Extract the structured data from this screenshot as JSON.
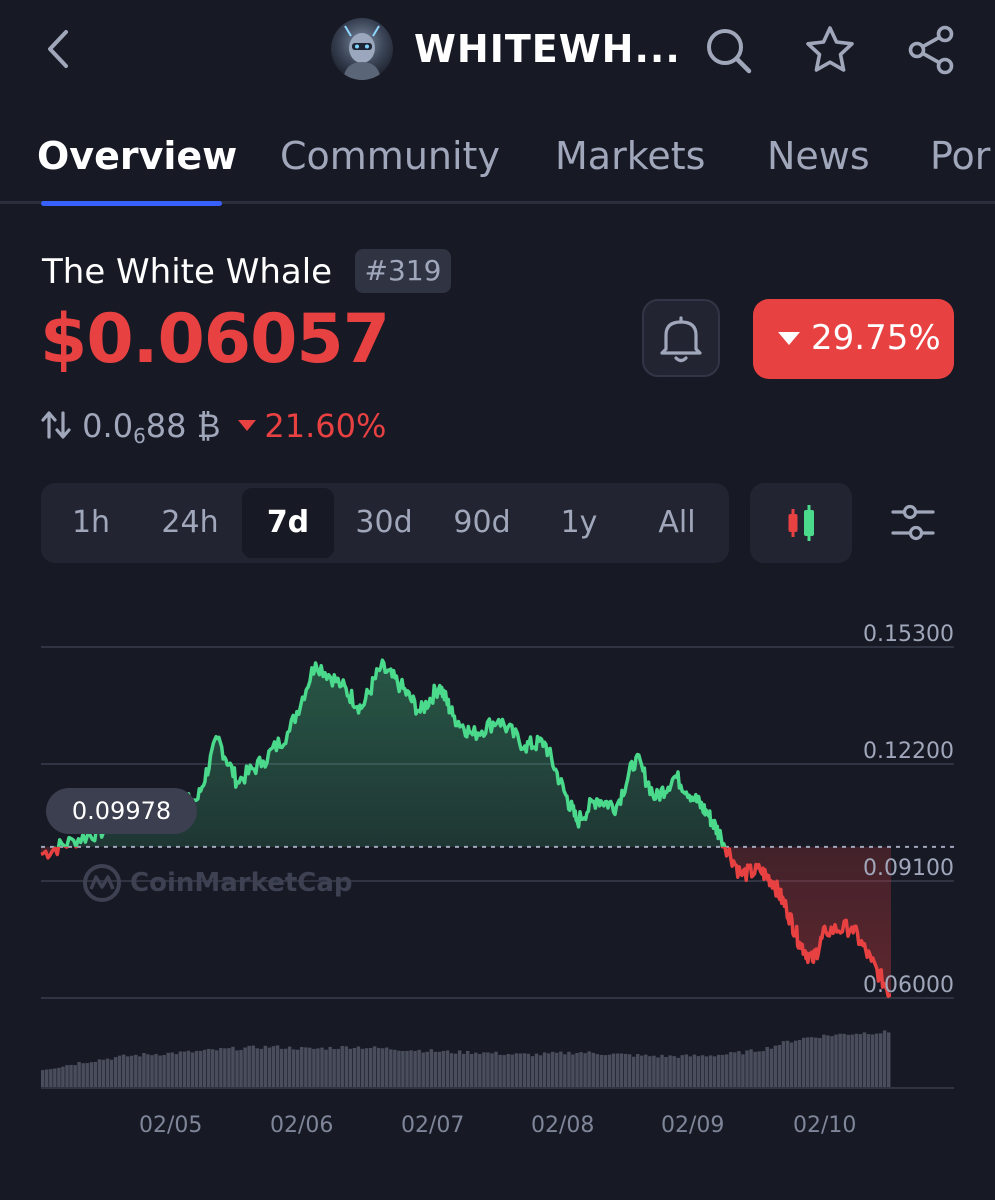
{
  "header": {
    "coin_short_name": "WHITEWH...",
    "icons": [
      "back-chevron-icon",
      "search-icon",
      "star-icon",
      "share-icon"
    ]
  },
  "tabs": [
    {
      "label": "Overview",
      "active": true
    },
    {
      "label": "Community",
      "active": false
    },
    {
      "label": "Markets",
      "active": false
    },
    {
      "label": "News",
      "active": false
    },
    {
      "label": "Por",
      "active": false
    }
  ],
  "coin": {
    "name": "The White Whale",
    "rank": "#319",
    "price": "$0.06057",
    "change_24h": "29.75%",
    "btc_price_main": "0.0",
    "btc_price_sub": "6",
    "btc_price_tail": "88 ₿",
    "btc_change": "21.60%"
  },
  "colors": {
    "background": "#171924",
    "up": "#4bd98c",
    "down": "#e84142",
    "accent": "#3861fb"
  },
  "range_selector": {
    "options": [
      "1h",
      "24h",
      "7d",
      "30d",
      "90d",
      "1y",
      "All"
    ],
    "selected": "7d"
  },
  "chart_badge": "0.09978",
  "watermark": "CoinMarketCap",
  "chart_data": {
    "type": "line",
    "reference_value": 0.09978,
    "y_ticks": [
      "0.15300",
      "0.12200",
      "0.09100",
      "0.06000"
    ],
    "x_ticks": [
      "02/05",
      "02/06",
      "02/07",
      "02/08",
      "02/09",
      "02/10"
    ],
    "ylim": [
      0.06,
      0.153
    ],
    "x": [
      0,
      0.25,
      0.5,
      0.8,
      1.0,
      1.2,
      1.35,
      1.5,
      1.7,
      1.9,
      2.1,
      2.3,
      2.45,
      2.6,
      2.75,
      2.9,
      3.05,
      3.15,
      3.3,
      3.5,
      3.7,
      3.85,
      4.0,
      4.1,
      4.25,
      4.4,
      4.55,
      4.7,
      4.85,
      5.0,
      5.1,
      5.2,
      5.35,
      5.5,
      5.6,
      5.7,
      5.8,
      5.9,
      6.0,
      6.2,
      6.35,
      6.5
    ],
    "y": [
      0.0978,
      0.1015,
      0.1045,
      0.1085,
      0.1105,
      0.1125,
      0.1285,
      0.117,
      0.1225,
      0.1305,
      0.1485,
      0.1425,
      0.1365,
      0.1475,
      0.1425,
      0.1355,
      0.1425,
      0.1345,
      0.1295,
      0.1335,
      0.1265,
      0.1275,
      0.1145,
      0.1065,
      0.1125,
      0.1105,
      0.1235,
      0.1125,
      0.1185,
      0.1125,
      0.1085,
      0.1025,
      0.0925,
      0.0935,
      0.0905,
      0.0835,
      0.0745,
      0.0695,
      0.0775,
      0.0785,
      0.0695,
      0.0605
    ],
    "volume": [
      0.32,
      0.38,
      0.45,
      0.5,
      0.55,
      0.58,
      0.6,
      0.62,
      0.65,
      0.68,
      0.7,
      0.72,
      0.7,
      0.68,
      0.7,
      0.72,
      0.7,
      0.68,
      0.66,
      0.64,
      0.62,
      0.62,
      0.6,
      0.58,
      0.58,
      0.6,
      0.62,
      0.6,
      0.58,
      0.56,
      0.55,
      0.55,
      0.56,
      0.58,
      0.62,
      0.68,
      0.8,
      0.88,
      0.92,
      0.95,
      0.97,
      0.98
    ]
  }
}
